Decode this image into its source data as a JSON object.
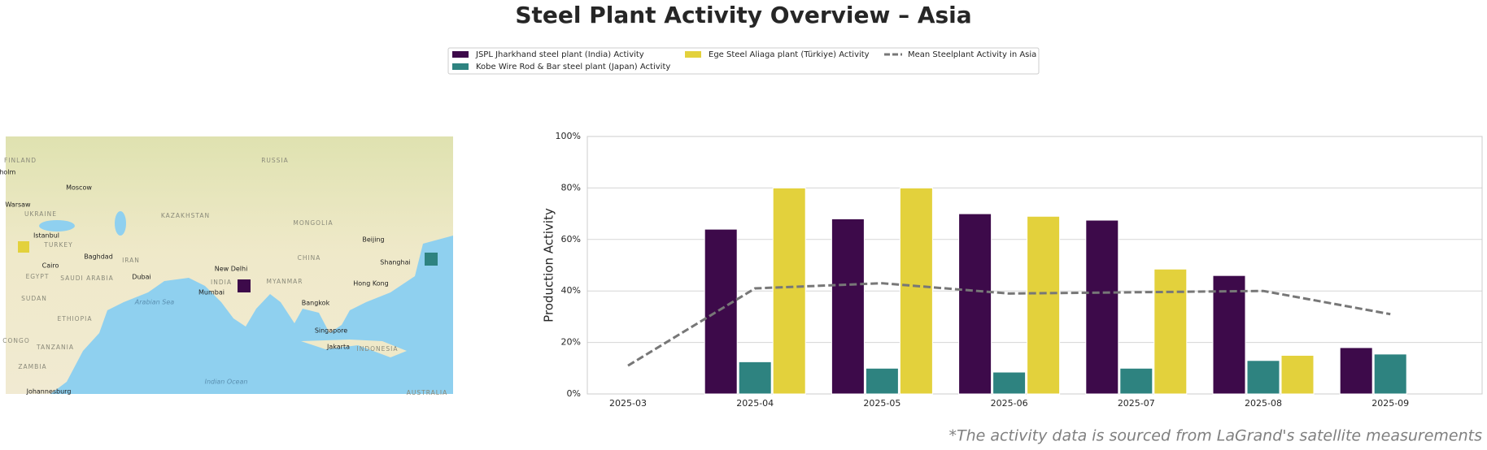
{
  "title": "Steel Plant Activity Overview – Asia",
  "footnote": "*The activity data is sourced from LaGrand's satellite measurements",
  "map": {
    "labels": [
      "FINLAND",
      "RUSSIA",
      "kholm",
      "Moscow",
      "Warsaw",
      "UKRAINE",
      "KAZAKHSTAN",
      "MONGOLIA",
      "Beijing",
      "Istanbul",
      "TURKEY",
      "Baghdad",
      "IRAN",
      "CHINA",
      "Shanghai",
      "EGYPT",
      "Cairo",
      "SAUDI ARABIA",
      "Dubai",
      "New Delhi",
      "INDIA",
      "MYANMAR",
      "Hong Kong",
      "Mumbai",
      "Arabian Sea",
      "Bangkok",
      "SUDAN",
      "ETHIOPIA",
      "Singapore",
      "Jakarta",
      "INDONESIA",
      "CONGO",
      "TANZANIA",
      "ZAMBIA",
      "Indian Ocean",
      "Johannesburg",
      "AUSTRALIA"
    ]
  },
  "chart_data": {
    "type": "bar",
    "y_label": "Production Activity",
    "categories": [
      "2025-03",
      "2025-04",
      "2025-05",
      "2025-06",
      "2025-07",
      "2025-08",
      "2025-09"
    ],
    "series": [
      {
        "name": "JSPL Jharkhand steel plant (India) Activity",
        "color": "#3d0a4a",
        "values": [
          null,
          64,
          68,
          70,
          67.5,
          46,
          18
        ]
      },
      {
        "name": "Kobe Wire Rod & Bar steel plant (Japan) Activity",
        "color": "#2e8380",
        "values": [
          null,
          12.5,
          10,
          8.5,
          10,
          13,
          15.5
        ]
      },
      {
        "name": "Ege Steel Aliaga plant (Türkiye) Activity",
        "color": "#e3d13c",
        "values": [
          null,
          80,
          80,
          69,
          48.5,
          15,
          null
        ]
      },
      {
        "name": "Mean Steelplant Activity in Asia",
        "color": "#777777",
        "kind": "line",
        "line_style": "dashed",
        "values": [
          11,
          41,
          43,
          39,
          39.5,
          40,
          31
        ]
      }
    ],
    "ylim": [
      0,
      100
    ],
    "yticks": [
      {
        "value": 0,
        "label": "0%"
      },
      {
        "value": 20,
        "label": "20%"
      },
      {
        "value": 40,
        "label": "40%"
      },
      {
        "value": 60,
        "label": "60%"
      },
      {
        "value": 80,
        "label": "80%"
      },
      {
        "value": 100,
        "label": "100%"
      }
    ],
    "grid": true
  }
}
